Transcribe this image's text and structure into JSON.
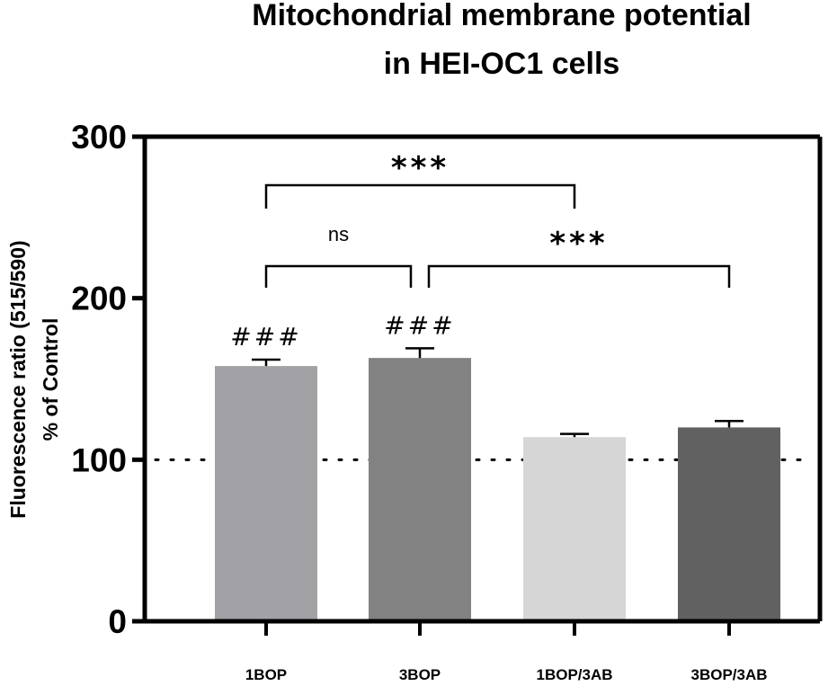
{
  "chart_data": {
    "type": "bar",
    "title": [
      "Mitochondrial membrane potential",
      "in HEI-OC1 cells"
    ],
    "ylabel": [
      "Fluorescence ratio (515/590)",
      "% of Control"
    ],
    "xlabel": "",
    "ylim": [
      0,
      300
    ],
    "yticks": [
      0,
      100,
      200,
      300
    ],
    "ytick_labels": [
      "0",
      "100",
      "200",
      "300"
    ],
    "categories": [
      "1BOP",
      "3BOP",
      "1BOP/3AB",
      "3BOP/3AB"
    ],
    "values": [
      158,
      163,
      114,
      120
    ],
    "errors": [
      4,
      6,
      2,
      4
    ],
    "colors": [
      "#a2a1a6",
      "#828282",
      "#d6d6d6",
      "#616161"
    ],
    "reference_line": 100,
    "bar_annotations": [
      {
        "category": "1BOP",
        "text": "###"
      },
      {
        "category": "3BOP",
        "text": "###"
      }
    ],
    "comparisons": [
      {
        "from": "1BOP",
        "to": "3BOP",
        "label": "ns"
      },
      {
        "from": "1BOP",
        "to": "1BOP/3AB",
        "label": "***"
      },
      {
        "from": "3BOP",
        "to": "3BOP/3AB",
        "label": "***"
      }
    ]
  }
}
